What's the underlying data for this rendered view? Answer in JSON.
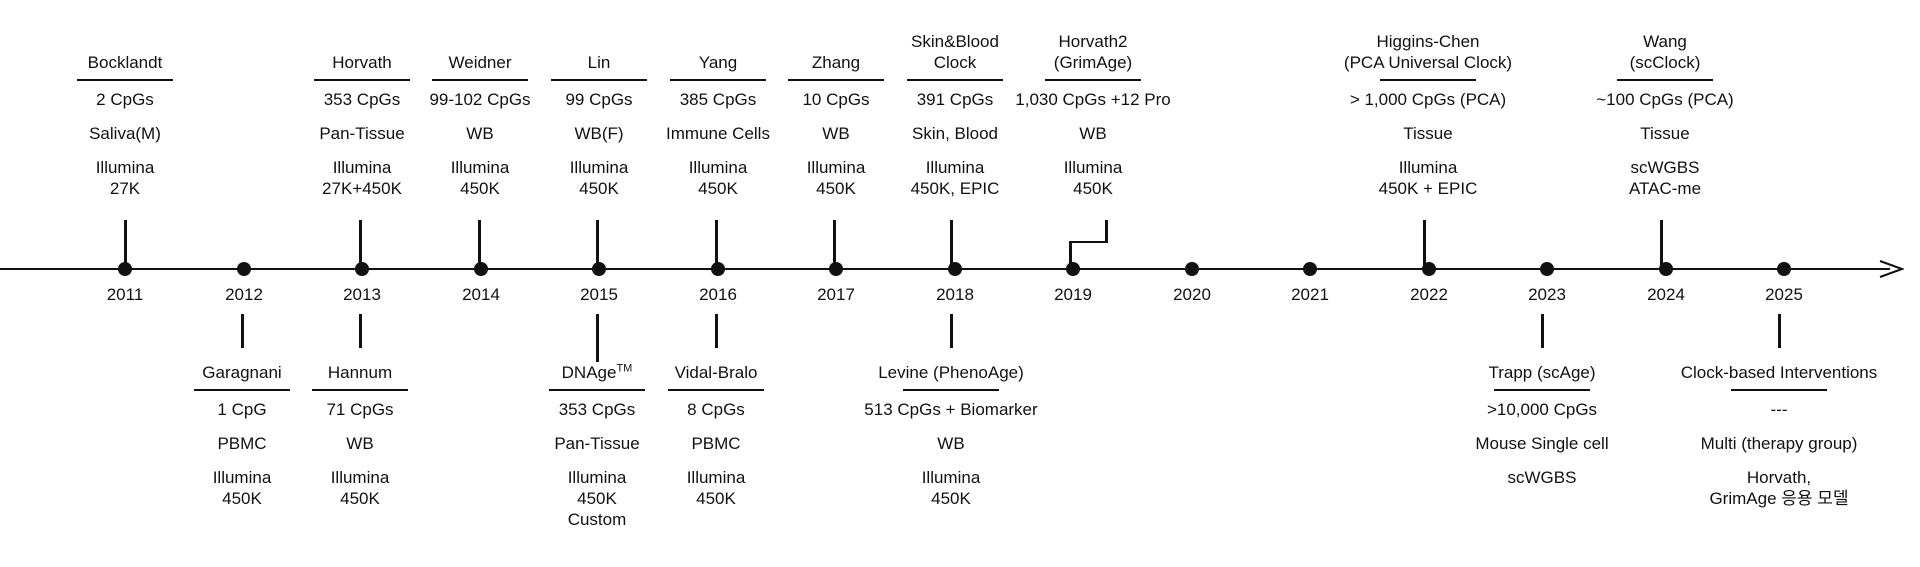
{
  "axis": {
    "years": [
      "2011",
      "2012",
      "2013",
      "2014",
      "2015",
      "2016",
      "2017",
      "2018",
      "2019",
      "2020",
      "2021",
      "2022",
      "2023",
      "2024",
      "2025"
    ]
  },
  "top_entries": [
    {
      "title": "Bocklandt",
      "cpgs": "2 CpGs",
      "tissue": "Saliva(M)",
      "platform": "Illumina\n27K"
    },
    {
      "title": "Horvath",
      "cpgs": "353 CpGs",
      "tissue": "Pan-Tissue",
      "platform": "Illumina\n27K+450K"
    },
    {
      "title": "Weidner",
      "cpgs": "99-102 CpGs",
      "tissue": "WB",
      "platform": "Illumina\n450K"
    },
    {
      "title": "Lin",
      "cpgs": "99 CpGs",
      "tissue": "WB(F)",
      "platform": "Illumina\n450K"
    },
    {
      "title": "Yang",
      "cpgs": "385 CpGs",
      "tissue": "Immune Cells",
      "platform": "Illumina\n450K"
    },
    {
      "title": "Zhang",
      "cpgs": "10 CpGs",
      "tissue": "WB",
      "platform": "Illumina\n450K"
    },
    {
      "title": "Skin&Blood\nClock",
      "cpgs": "391 CpGs",
      "tissue": "Skin, Blood",
      "platform": "Illumina\n450K, EPIC"
    },
    {
      "title": "Horvath2\n(GrimAge)",
      "cpgs": "1,030 CpGs +12 Pro",
      "tissue": "WB",
      "platform": "Illumina\n450K"
    },
    {
      "title": "Higgins-Chen\n(PCA Universal Clock)",
      "cpgs": "> 1,000 CpGs (PCA)",
      "tissue": "Tissue",
      "platform": "Illumina\n450K + EPIC"
    },
    {
      "title": "Wang\n(scClock)",
      "cpgs": "~100 CpGs (PCA)",
      "tissue": "Tissue",
      "platform": "scWGBS\nATAC-me"
    }
  ],
  "bottom_entries": [
    {
      "title": "Garagnani",
      "cpgs": "1 CpG",
      "tissue": "PBMC",
      "platform": "Illumina\n450K"
    },
    {
      "title": "Hannum",
      "cpgs": "71 CpGs",
      "tissue": "WB",
      "platform": "Illumina\n450K"
    },
    {
      "title": "DNAge",
      "title_sup": "TM",
      "cpgs": "353 CpGs",
      "tissue": "Pan-Tissue",
      "platform": "Illumina\n450K\nCustom"
    },
    {
      "title": "Vidal-Bralo",
      "cpgs": "8 CpGs",
      "tissue": "PBMC",
      "platform": "Illumina\n450K"
    },
    {
      "title": "Levine (PhenoAge)",
      "cpgs": "513 CpGs + Biomarker",
      "tissue": "WB",
      "platform": "Illumina\n450K"
    },
    {
      "title": "Trapp (scAge)",
      "cpgs": ">10,000 CpGs",
      "tissue": "Mouse Single cell",
      "platform": "scWGBS"
    },
    {
      "title": "Clock-based Interventions",
      "cpgs": "---",
      "tissue": "Multi (therapy group)",
      "platform": "Horvath,\nGrimAge 응용 모델"
    }
  ]
}
